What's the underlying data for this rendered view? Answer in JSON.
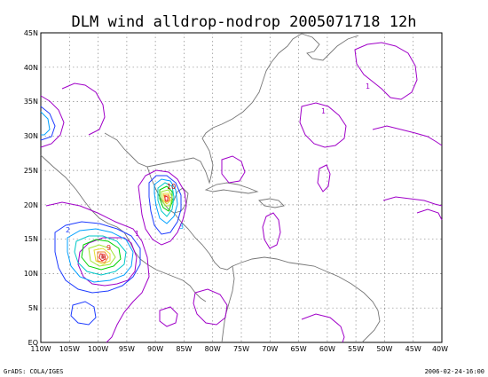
{
  "title": "DLM wind alldrop-nodrop 2005071718 12h",
  "footer_left": "GrADS: COLA/IGES",
  "footer_right": "2006-02-24-16:00",
  "lat_labels": [
    "EQ",
    "5N",
    "10N",
    "15N",
    "20N",
    "25N",
    "30N",
    "35N",
    "40N",
    "45N"
  ],
  "lon_labels": [
    "110W",
    "105W",
    "100W",
    "95W",
    "90W",
    "85W",
    "80W",
    "75W",
    "70W",
    "65W",
    "60W",
    "55W",
    "50W",
    "45W",
    "40W"
  ],
  "contour_colors": {
    "level_1": "#a000c8",
    "level_2": "#1e3cff",
    "level_3": "#00a0ff",
    "level_4": "#00c8c8",
    "level_5": "#00d200",
    "level_6": "#a0e632",
    "level_7": "#e6dc32",
    "level_8": "#f08228",
    "level_9": "#e61e1e",
    "level_10": "#c00000"
  },
  "contour_labels": {
    "gulf_peak": "10",
    "pacific_peak": "9",
    "pacific_a": "2",
    "pacific_b": "1",
    "gulf_a": "3",
    "atlantic_a": "1",
    "atlantic_b": "1"
  }
}
